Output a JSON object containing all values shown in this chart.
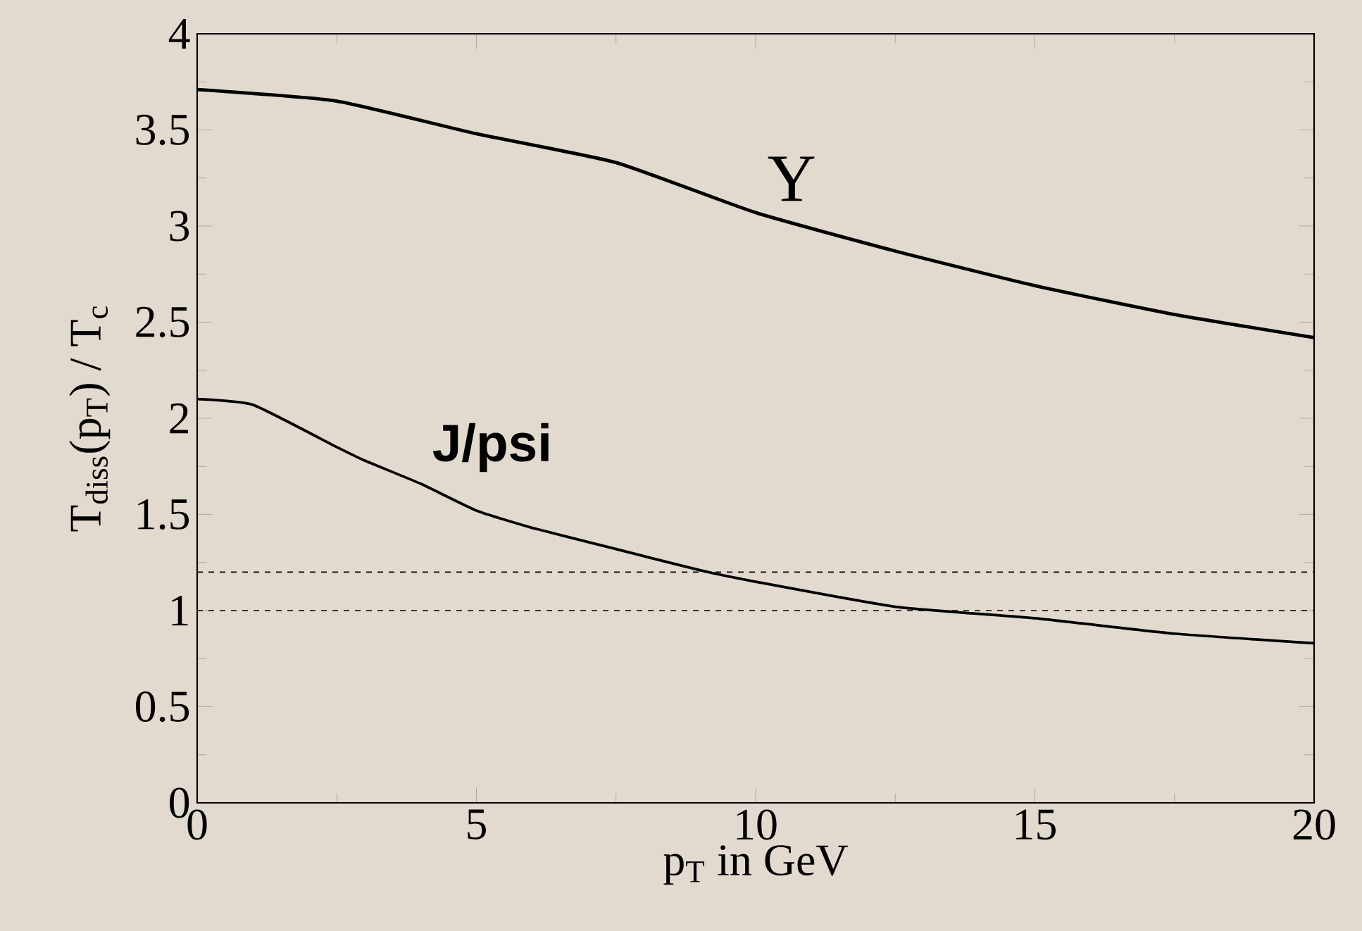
{
  "chart_data": {
    "type": "line",
    "xlabel": "p$_{T}$ in GeV",
    "ylabel": "T$_{diss}$(p$_{T}$) / T$_{c}$",
    "xlim": [
      0,
      20
    ],
    "ylim": [
      0,
      4
    ],
    "xticks": [
      0,
      5,
      10,
      15,
      20
    ],
    "yticks": [
      0,
      0.5,
      1,
      1.5,
      2,
      2.5,
      3,
      3.5,
      4
    ],
    "line_style": "solid",
    "series": [
      {
        "name": "Υ",
        "color": "#000000",
        "x": [
          0,
          2.5,
          5,
          7.5,
          10,
          12.5,
          15,
          17.5,
          20
        ],
        "values": [
          3.71,
          3.65,
          3.48,
          3.33,
          3.07,
          2.87,
          2.69,
          2.54,
          2.42
        ]
      },
      {
        "name": "J/psi",
        "color": "#000000",
        "x": [
          0,
          1,
          2.5,
          3,
          4,
          5,
          6,
          7.5,
          9,
          10,
          12.5,
          15,
          17.5,
          20
        ],
        "values": [
          2.1,
          2.07,
          1.85,
          1.78,
          1.66,
          1.52,
          1.43,
          1.32,
          1.21,
          1.15,
          1.02,
          0.96,
          0.88,
          0.83
        ]
      }
    ],
    "ref_lines": [
      {
        "axis": "y",
        "value": 1.2,
        "line_style": "dashed"
      },
      {
        "axis": "y",
        "value": 1,
        "line_style": "dashed"
      }
    ]
  }
}
